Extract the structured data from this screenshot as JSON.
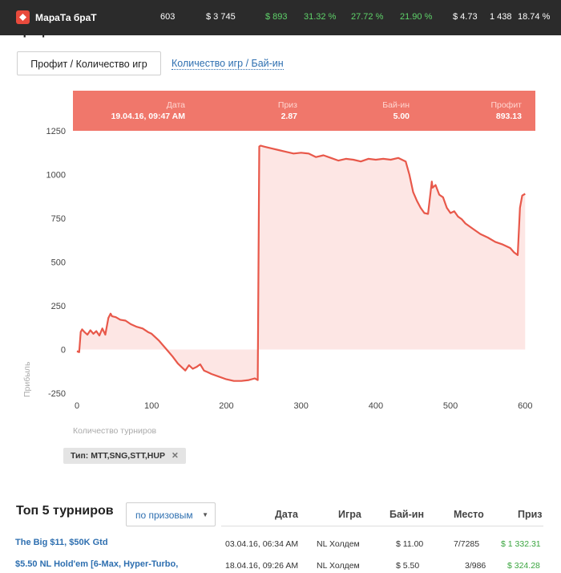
{
  "topbar": {
    "player": "МараТа браТ",
    "games": "603",
    "profit_total": "$ 3 745",
    "profit": "$ 893",
    "pct1": "31.32 %",
    "pct2": "27.72 %",
    "pct3": "21.90 %",
    "avg_buyin": "$ 4.73",
    "count": "1 438",
    "pct4": "18.74 %"
  },
  "section_title": "График",
  "tabs": {
    "active": "Профит / Количество игр",
    "link": "Количество игр / Бай-ин"
  },
  "tooltip": {
    "date_label": "Дата",
    "date_value": "19.04.16, 09:47 AM",
    "prize_label": "Приз",
    "prize_value": "2.87",
    "buyin_label": "Бай-ин",
    "buyin_value": "5.00",
    "profit_label": "Профит",
    "profit_value": "893.13"
  },
  "chart_data": {
    "type": "area",
    "xlabel": "Количество турниров",
    "ylabel": "Прибыль",
    "xlim": [
      0,
      605
    ],
    "ylim": [
      -250,
      1250
    ],
    "xticks": [
      0,
      100,
      200,
      300,
      400,
      500,
      600
    ],
    "yticks": [
      -250,
      0,
      250,
      500,
      750,
      1000,
      1250
    ],
    "line_color": "#e8584a",
    "fill_color": "#fde6e4",
    "series": [
      {
        "x": [
          0,
          3,
          5,
          7,
          10,
          14,
          18,
          22,
          26,
          30,
          34,
          38,
          42,
          45,
          47,
          52,
          58,
          65,
          72,
          80,
          88,
          95,
          100,
          110,
          120,
          128,
          135,
          140,
          145,
          150,
          155,
          160,
          165,
          170,
          175,
          180,
          190,
          200,
          210,
          220,
          230,
          238,
          242,
          244,
          246,
          250,
          255,
          260,
          270,
          280,
          290,
          300,
          310,
          320,
          330,
          340,
          350,
          360,
          370,
          380,
          390,
          400,
          410,
          420,
          430,
          440,
          445,
          450,
          455,
          460,
          465,
          470,
          475,
          476,
          480,
          485,
          490,
          495,
          500,
          505,
          510,
          515,
          520,
          530,
          540,
          550,
          560,
          570,
          580,
          585,
          590,
          593,
          596,
          600
        ],
        "values": [
          -10,
          -15,
          100,
          115,
          100,
          85,
          110,
          90,
          105,
          80,
          120,
          85,
          180,
          205,
          190,
          185,
          170,
          165,
          145,
          130,
          120,
          100,
          90,
          50,
          0,
          -40,
          -80,
          -100,
          -120,
          -90,
          -110,
          -100,
          -85,
          -120,
          -130,
          -140,
          -155,
          -170,
          -180,
          -180,
          -175,
          -165,
          -175,
          1160,
          1165,
          1160,
          1155,
          1150,
          1140,
          1130,
          1120,
          1125,
          1120,
          1100,
          1110,
          1095,
          1080,
          1090,
          1085,
          1075,
          1090,
          1085,
          1090,
          1085,
          1095,
          1075,
          1000,
          900,
          850,
          810,
          780,
          775,
          960,
          925,
          940,
          885,
          870,
          810,
          780,
          790,
          760,
          745,
          720,
          690,
          660,
          640,
          615,
          600,
          580,
          555,
          540,
          810,
          880,
          890
        ]
      }
    ]
  },
  "filter": {
    "label": "Тип: MTT,SNG,STT,HUP",
    "close": "✕"
  },
  "top5": {
    "title": "Топ 5 турниров",
    "sort": "по призовым",
    "columns": [
      "Дата",
      "Игра",
      "Бай-ин",
      "Место",
      "Приз"
    ],
    "rows": [
      {
        "name": "The Big $11, $50K Gtd",
        "date": "03.04.16, 06:34 AM",
        "game": "NL Холдем",
        "buyin": "$ 11.00",
        "place": "7/7285",
        "prize": "$ 1 332.31"
      },
      {
        "name": "$5.50 NL Hold'em [6-Max, Hyper-Turbo,",
        "date": "18.04.16, 09:26 AM",
        "game": "NL Холдем",
        "buyin": "$ 5.50",
        "place": "3/986",
        "prize": "$ 324.28"
      }
    ]
  }
}
